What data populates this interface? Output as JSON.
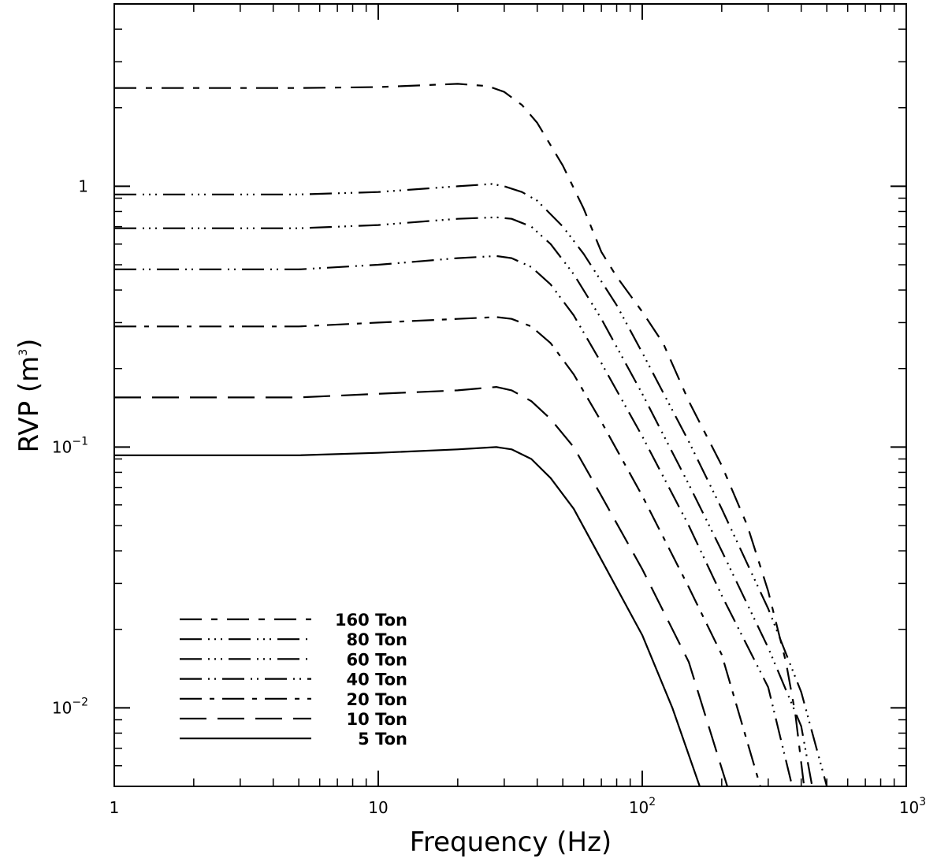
{
  "chart_data": {
    "type": "line",
    "xscale": "log",
    "yscale": "log",
    "xlim": [
      1,
      1000
    ],
    "ylim": [
      0.005,
      5
    ],
    "xlabel": "Frequency (Hz)",
    "ylabel_base": "RVP (m",
    "ylabel_sup": "3",
    "ylabel_end": ")",
    "x_ticks": [
      {
        "value": 1,
        "base": "1",
        "sup": ""
      },
      {
        "value": 10,
        "base": "10",
        "sup": ""
      },
      {
        "value": 100,
        "base": "10",
        "sup": "2"
      },
      {
        "value": 1000,
        "base": "10",
        "sup": "3"
      }
    ],
    "y_ticks": [
      {
        "value": 0.01,
        "base": "10",
        "sup": "−2"
      },
      {
        "value": 0.1,
        "base": "10",
        "sup": "−1"
      },
      {
        "value": 1,
        "base": "1",
        "sup": ""
      }
    ],
    "legend_position": "bottom-left",
    "series": [
      {
        "name": "160 Ton",
        "dash": "28 12 8 12",
        "points": [
          [
            1,
            2.38
          ],
          [
            5,
            2.38
          ],
          [
            10,
            2.4
          ],
          [
            20,
            2.47
          ],
          [
            26,
            2.42
          ],
          [
            30,
            2.3
          ],
          [
            35,
            2.05
          ],
          [
            40,
            1.75
          ],
          [
            50,
            1.2
          ],
          [
            60,
            0.82
          ],
          [
            70,
            0.56
          ],
          [
            80,
            0.45
          ],
          [
            100,
            0.33
          ],
          [
            120,
            0.25
          ],
          [
            150,
            0.15
          ],
          [
            200,
            0.085
          ],
          [
            250,
            0.05
          ],
          [
            300,
            0.028
          ],
          [
            350,
            0.015
          ],
          [
            380,
            0.0095
          ],
          [
            410,
            0.005
          ]
        ]
      },
      {
        "name": "80 Ton",
        "dash": "28 8 2 6 2 6 2 8",
        "points": [
          [
            1,
            0.93
          ],
          [
            5,
            0.93
          ],
          [
            10,
            0.95
          ],
          [
            20,
            1.0
          ],
          [
            27,
            1.02
          ],
          [
            30,
            1.0
          ],
          [
            35,
            0.95
          ],
          [
            40,
            0.88
          ],
          [
            50,
            0.7
          ],
          [
            60,
            0.55
          ],
          [
            80,
            0.35
          ],
          [
            100,
            0.23
          ],
          [
            150,
            0.105
          ],
          [
            200,
            0.058
          ],
          [
            300,
            0.024
          ],
          [
            400,
            0.0115
          ],
          [
            500,
            0.005
          ]
        ]
      },
      {
        "name": "60 Ton",
        "dash": "28 8 2 6 2 6 2 8",
        "points": [
          [
            1,
            0.69
          ],
          [
            5,
            0.69
          ],
          [
            10,
            0.71
          ],
          [
            20,
            0.75
          ],
          [
            28,
            0.76
          ],
          [
            32,
            0.75
          ],
          [
            38,
            0.7
          ],
          [
            45,
            0.6
          ],
          [
            55,
            0.46
          ],
          [
            70,
            0.31
          ],
          [
            100,
            0.16
          ],
          [
            150,
            0.072
          ],
          [
            200,
            0.04
          ],
          [
            300,
            0.017
          ],
          [
            400,
            0.0085
          ],
          [
            440,
            0.005
          ]
        ]
      },
      {
        "name": "40 Ton",
        "dash": "28 8 2 6 2 8",
        "points": [
          [
            1,
            0.48
          ],
          [
            5,
            0.48
          ],
          [
            10,
            0.5
          ],
          [
            20,
            0.53
          ],
          [
            28,
            0.54
          ],
          [
            32,
            0.53
          ],
          [
            38,
            0.49
          ],
          [
            45,
            0.42
          ],
          [
            55,
            0.32
          ],
          [
            70,
            0.21
          ],
          [
            100,
            0.11
          ],
          [
            150,
            0.05
          ],
          [
            200,
            0.027
          ],
          [
            300,
            0.012
          ],
          [
            370,
            0.005
          ]
        ]
      },
      {
        "name": "20 Ton",
        "dash": "28 10 6 10",
        "points": [
          [
            1,
            0.29
          ],
          [
            5,
            0.29
          ],
          [
            10,
            0.3
          ],
          [
            20,
            0.31
          ],
          [
            28,
            0.315
          ],
          [
            32,
            0.31
          ],
          [
            38,
            0.29
          ],
          [
            45,
            0.25
          ],
          [
            55,
            0.19
          ],
          [
            70,
            0.125
          ],
          [
            100,
            0.065
          ],
          [
            150,
            0.029
          ],
          [
            200,
            0.016
          ],
          [
            280,
            0.005
          ]
        ]
      },
      {
        "name": "10 Ton",
        "dash": "34 14",
        "points": [
          [
            1,
            0.155
          ],
          [
            5,
            0.155
          ],
          [
            10,
            0.16
          ],
          [
            20,
            0.165
          ],
          [
            28,
            0.17
          ],
          [
            32,
            0.165
          ],
          [
            38,
            0.15
          ],
          [
            45,
            0.128
          ],
          [
            55,
            0.1
          ],
          [
            70,
            0.065
          ],
          [
            100,
            0.034
          ],
          [
            150,
            0.015
          ],
          [
            210,
            0.005
          ]
        ]
      },
      {
        "name": "5 Ton",
        "dash": "",
        "points": [
          [
            1,
            0.093
          ],
          [
            5,
            0.093
          ],
          [
            10,
            0.095
          ],
          [
            20,
            0.098
          ],
          [
            28,
            0.1
          ],
          [
            32,
            0.098
          ],
          [
            38,
            0.09
          ],
          [
            45,
            0.076
          ],
          [
            55,
            0.058
          ],
          [
            70,
            0.037
          ],
          [
            100,
            0.019
          ],
          [
            130,
            0.01
          ],
          [
            165,
            0.005
          ]
        ]
      }
    ]
  }
}
